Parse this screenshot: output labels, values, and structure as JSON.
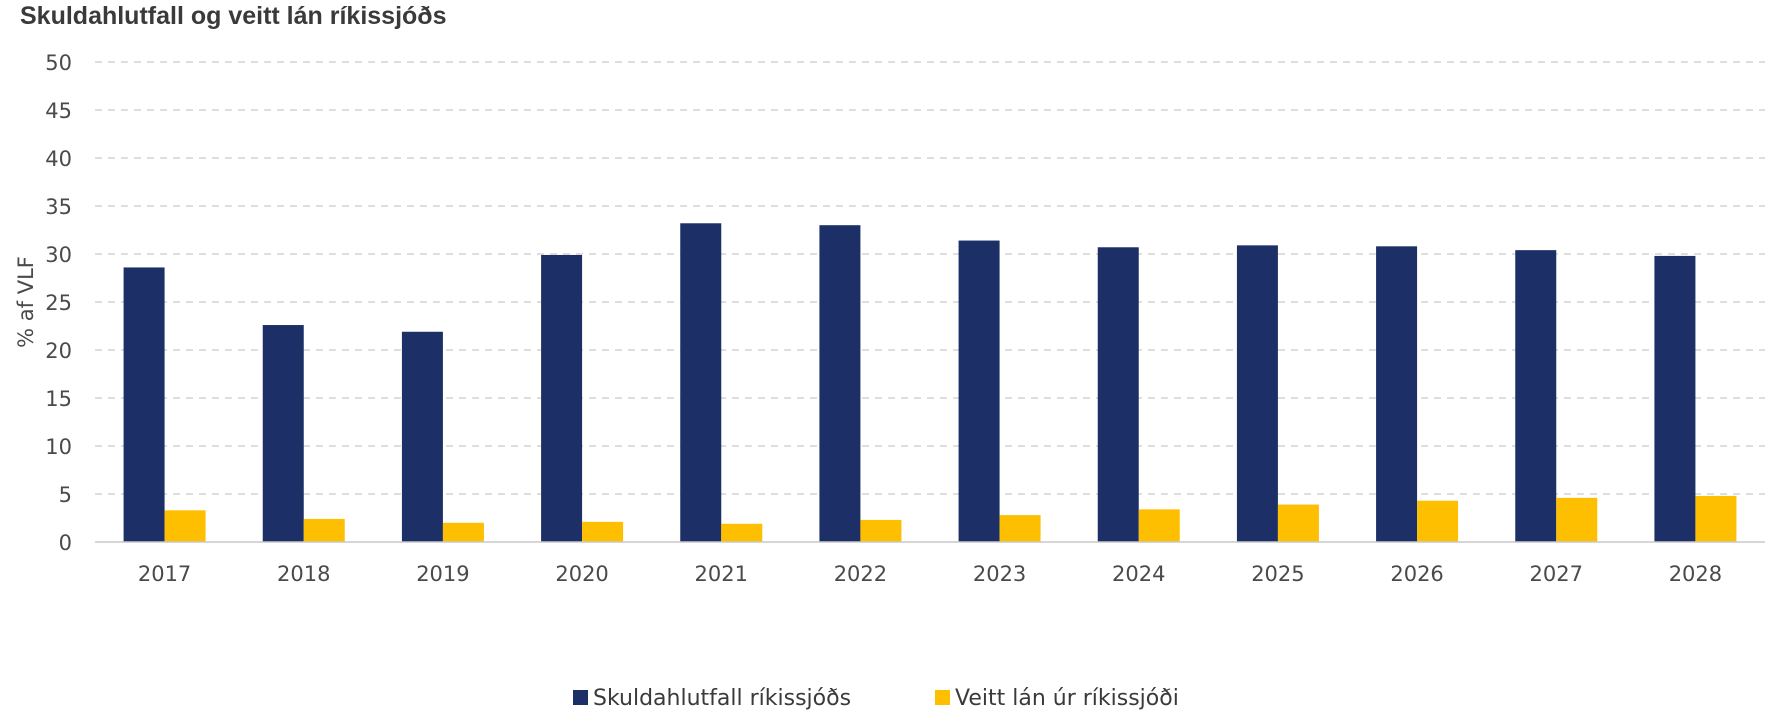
{
  "chart_data": {
    "type": "bar",
    "title": "Skuldahlutfall og veitt lán ríkissjóðs",
    "ylabel": "% af VLF",
    "xlabel": "",
    "ylim": [
      0,
      50
    ],
    "yticks": [
      0,
      5,
      10,
      15,
      20,
      25,
      30,
      35,
      40,
      45,
      50
    ],
    "grid": true,
    "legend_position": "bottom",
    "categories": [
      "2017",
      "2018",
      "2019",
      "2020",
      "2021",
      "2022",
      "2023",
      "2024",
      "2025",
      "2026",
      "2027",
      "2028"
    ],
    "series": [
      {
        "name": "Skuldahlutfall ríkissjóðs",
        "color": "#1c2f66",
        "values": [
          28.6,
          22.6,
          21.9,
          29.9,
          33.2,
          33.0,
          31.4,
          30.7,
          30.9,
          30.8,
          30.4,
          29.8
        ]
      },
      {
        "name": "Veitt lán úr ríkissjóði",
        "color": "#fdbf00",
        "values": [
          3.3,
          2.4,
          2.0,
          2.1,
          1.9,
          2.3,
          2.8,
          3.4,
          3.9,
          4.3,
          4.6,
          4.8
        ]
      }
    ]
  }
}
